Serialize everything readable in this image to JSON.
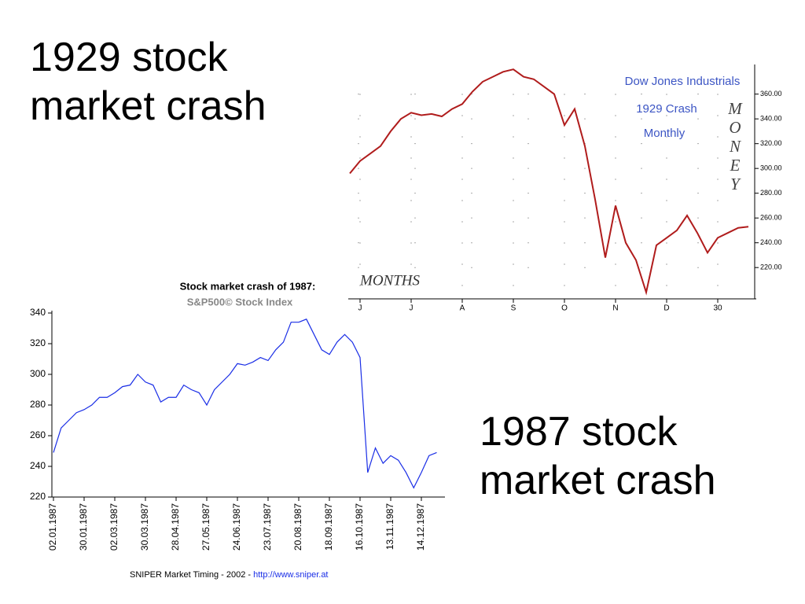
{
  "slide": {
    "heading_1929": "1929 stock market crash",
    "heading_1987": "1987 stock market crash"
  },
  "chart_data": [
    {
      "type": "line",
      "title": "Dow Jones Industrials",
      "subtitle": "1929 Crash",
      "note": "Monthly",
      "y_label": "MONEY",
      "x_label": "MONTHS",
      "categories": [
        null,
        "J",
        null,
        null,
        null,
        null,
        "J",
        null,
        null,
        null,
        null,
        "A",
        null,
        null,
        null,
        null,
        "S",
        null,
        null,
        null,
        null,
        "O",
        null,
        null,
        null,
        null,
        "N",
        null,
        null,
        null,
        null,
        "D",
        null,
        null,
        null,
        null,
        "30",
        null,
        null,
        null
      ],
      "series": [
        {
          "name": "Dow Jones Industrials",
          "color": "#b01c1c",
          "values": [
            296,
            306,
            312,
            318,
            330,
            340,
            345,
            343,
            344,
            342,
            348,
            352,
            362,
            370,
            374,
            378,
            380,
            374,
            372,
            366,
            360,
            335,
            348,
            318,
            275,
            228,
            270,
            240,
            226,
            200,
            238,
            244,
            250,
            262,
            248,
            232,
            244,
            248,
            252,
            253
          ]
        }
      ],
      "ylim": [
        196,
        382
      ],
      "yticks": [
        {
          "value": 220,
          "label": "220.00"
        },
        {
          "value": 240,
          "label": "240.00"
        },
        {
          "value": 260,
          "label": "260.00"
        },
        {
          "value": 280,
          "label": "280.00"
        },
        {
          "value": 300,
          "label": "300.00"
        },
        {
          "value": 320,
          "label": "320.00"
        },
        {
          "value": 340,
          "label": "340.00"
        },
        {
          "value": 360,
          "label": "360.00"
        }
      ],
      "grid": "dots",
      "y_axis_side": "right"
    },
    {
      "type": "line",
      "title": "Stock market crash of 1987:",
      "subtitle": "S&P500© Stock Index",
      "footer": "SNIPER Market Timing - 2002 - ",
      "source_link": "http://www.sniper.at",
      "categories": [
        "02.01.1987",
        null,
        null,
        null,
        "30.01.1987",
        null,
        null,
        null,
        "02.03.1987",
        null,
        null,
        null,
        "30.03.1987",
        null,
        null,
        null,
        "28.04.1987",
        null,
        null,
        null,
        "27.05.1987",
        null,
        null,
        null,
        "24.06.1987",
        null,
        null,
        null,
        "23.07.1987",
        null,
        null,
        null,
        "20.08.1987",
        null,
        null,
        null,
        "18.09.1987",
        null,
        null,
        null,
        "16.10.1987",
        null,
        null,
        null,
        "13.11.1987",
        null,
        null,
        null,
        "14.12.1987",
        null,
        null
      ],
      "series": [
        {
          "name": "S&P500",
          "color": "#1a2ee6",
          "values": [
            249,
            265,
            270,
            275,
            277,
            280,
            285,
            285,
            288,
            292,
            293,
            300,
            295,
            293,
            282,
            285,
            285,
            293,
            290,
            288,
            280,
            290,
            295,
            300,
            307,
            306,
            308,
            311,
            309,
            316,
            321,
            334,
            334,
            336,
            326,
            316,
            313,
            321,
            326,
            321,
            311,
            236,
            252,
            242,
            247,
            244,
            236,
            226,
            236,
            247,
            249
          ]
        }
      ],
      "ylim": [
        220,
        340
      ],
      "yticks": [
        220,
        240,
        260,
        280,
        300,
        320,
        340
      ],
      "grid": false,
      "y_axis_side": "left"
    }
  ]
}
